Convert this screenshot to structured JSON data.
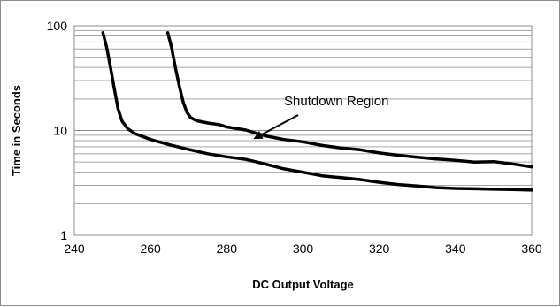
{
  "chart_data": {
    "type": "line",
    "title": "",
    "xlabel": "DC Output Voltage",
    "ylabel": "Time in Seconds",
    "xlim": [
      240,
      360
    ],
    "ylim": [
      1,
      100
    ],
    "yscale": "log",
    "grid": true,
    "legend": "none",
    "x_ticks": [
      {
        "value": 240,
        "label": "240"
      },
      {
        "value": 260,
        "label": "260"
      },
      {
        "value": 280,
        "label": "280"
      },
      {
        "value": 300,
        "label": "300"
      },
      {
        "value": 320,
        "label": "320"
      },
      {
        "value": 340,
        "label": "340"
      },
      {
        "value": 360,
        "label": "360"
      }
    ],
    "y_ticks": [
      {
        "value": 1,
        "label": "1"
      },
      {
        "value": 10,
        "label": "10"
      },
      {
        "value": 100,
        "label": "100"
      }
    ],
    "series": [
      {
        "color": "#000000",
        "points": [
          [
            247.5,
            86
          ],
          [
            248.5,
            62
          ],
          [
            249.5,
            40
          ],
          [
            250.5,
            25
          ],
          [
            251.5,
            16
          ],
          [
            252.5,
            12.3
          ],
          [
            254,
            10.4
          ],
          [
            256,
            9.3
          ],
          [
            260,
            8.2
          ],
          [
            265,
            7.3
          ],
          [
            270,
            6.6
          ],
          [
            275,
            6.0
          ],
          [
            280,
            5.6
          ],
          [
            285,
            5.3
          ],
          [
            290,
            4.8
          ],
          [
            295,
            4.3
          ],
          [
            300,
            4.0
          ],
          [
            305,
            3.7
          ],
          [
            310,
            3.55
          ],
          [
            315,
            3.4
          ],
          [
            320,
            3.2
          ],
          [
            325,
            3.05
          ],
          [
            330,
            2.95
          ],
          [
            335,
            2.85
          ],
          [
            340,
            2.8
          ],
          [
            345,
            2.78
          ],
          [
            350,
            2.75
          ],
          [
            355,
            2.73
          ],
          [
            360,
            2.7
          ]
        ]
      },
      {
        "color": "#000000",
        "points": [
          [
            264.5,
            86
          ],
          [
            265.5,
            62
          ],
          [
            266.5,
            40
          ],
          [
            267.5,
            27
          ],
          [
            268.5,
            19
          ],
          [
            269.5,
            15
          ],
          [
            270.5,
            13.3
          ],
          [
            272,
            12.4
          ],
          [
            275,
            11.8
          ],
          [
            278,
            11.4
          ],
          [
            280,
            10.8
          ],
          [
            285,
            10.1
          ],
          [
            290,
            8.9
          ],
          [
            295,
            8.2
          ],
          [
            300,
            7.8
          ],
          [
            305,
            7.2
          ],
          [
            310,
            6.8
          ],
          [
            315,
            6.55
          ],
          [
            320,
            6.1
          ],
          [
            325,
            5.8
          ],
          [
            330,
            5.55
          ],
          [
            335,
            5.35
          ],
          [
            340,
            5.2
          ],
          [
            345,
            5.0
          ],
          [
            350,
            5.05
          ],
          [
            355,
            4.8
          ],
          [
            360,
            4.5
          ]
        ]
      }
    ],
    "annotation": {
      "text": "Shutdown Region",
      "arrow_tip": [
        287,
        8.3
      ]
    }
  }
}
